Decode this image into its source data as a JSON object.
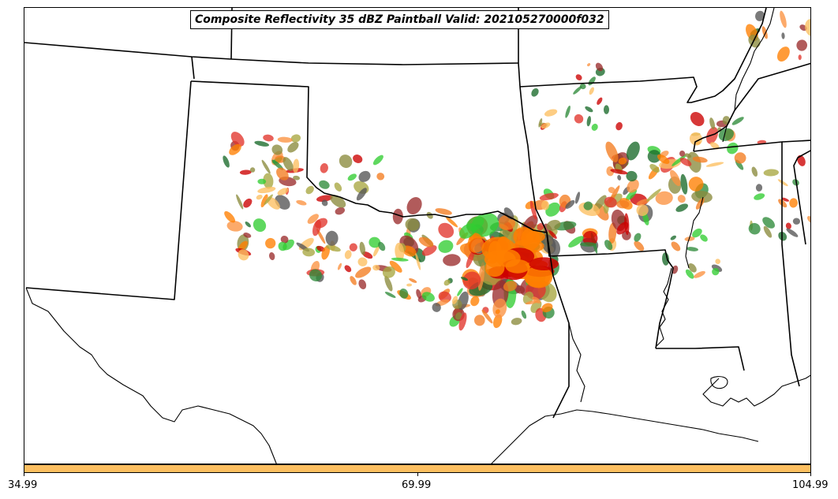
{
  "title": "Composite Reflectivity 35 dBZ Paintball Valid: 202105270000f032",
  "colorbar": {
    "color": "#fdbf60",
    "ticks": [
      "34.99",
      "69.99",
      "104.99"
    ]
  },
  "member_colors": [
    "#9b2d2d",
    "#e2342c",
    "#f47c20",
    "#fb9240",
    "#fdbf60",
    "#a8a640",
    "#8a8a3c",
    "#2e8b3a",
    "#1a6a2a",
    "#32cd32",
    "#555555",
    "#cc0000",
    "#ff7f00"
  ],
  "map": {
    "features": [
      "state-borders",
      "coastline",
      "rivers",
      "reflectivity-paintball-blobs"
    ]
  }
}
